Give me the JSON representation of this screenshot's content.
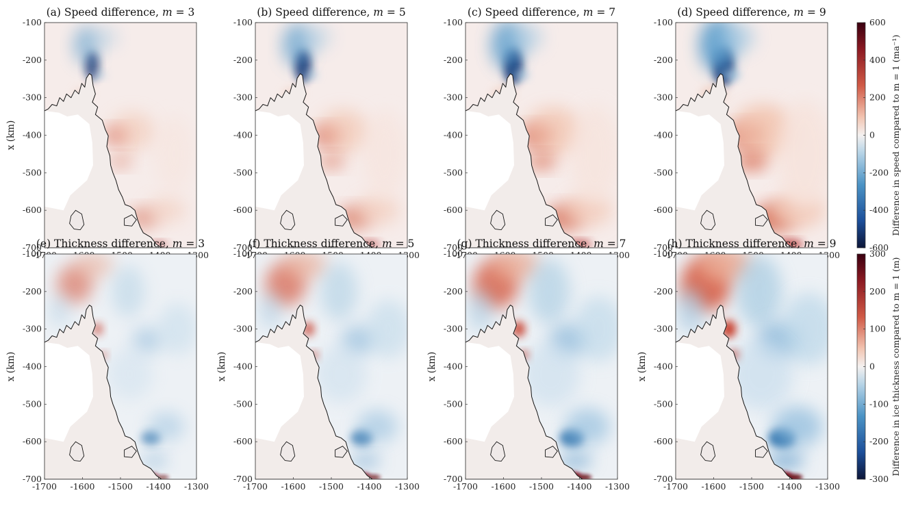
{
  "figure": {
    "panels": [
      {
        "title": "(a) Speed difference, m = 3",
        "title_main": "(a) Speed difference, ",
        "title_var": "m",
        "title_eq": " = 3",
        "field": "speed",
        "m": 3,
        "ylabel": "x (km)"
      },
      {
        "title": "(b) Speed difference, m = 5",
        "title_main": "(b) Speed difference, ",
        "title_var": "m",
        "title_eq": " = 5",
        "field": "speed",
        "m": 5,
        "ylabel": ""
      },
      {
        "title": "(c) Speed difference, m = 7",
        "title_main": "(c) Speed difference, ",
        "title_var": "m",
        "title_eq": " = 7",
        "field": "speed",
        "m": 7,
        "ylabel": ""
      },
      {
        "title": "(d) Speed difference, m = 9",
        "title_main": "(d) Speed difference, ",
        "title_var": "m",
        "title_eq": " = 9",
        "field": "speed",
        "m": 9,
        "ylabel": ""
      },
      {
        "title": "(e) Thickness difference, m = 3",
        "title_main": "(e) Thickness difference, ",
        "title_var": "m",
        "title_eq": " = 3",
        "field": "thickness",
        "m": 3,
        "ylabel": "x (km)"
      },
      {
        "title": "(f) Thickness difference, m = 5",
        "title_main": "(f) Thickness difference, ",
        "title_var": "m",
        "title_eq": " = 5",
        "field": "thickness",
        "m": 5,
        "ylabel": "x (km)"
      },
      {
        "title": "(g) Thickness difference, m = 7",
        "title_main": "(g) Thickness difference, ",
        "title_var": "m",
        "title_eq": " = 7",
        "field": "thickness",
        "m": 7,
        "ylabel": "x (km)"
      },
      {
        "title": "(h) Thickness difference, m = 9",
        "title_main": "(h) Thickness difference, ",
        "title_var": "m",
        "title_eq": " = 9",
        "field": "thickness",
        "m": 9,
        "ylabel": "x (km)"
      }
    ],
    "colorbars": {
      "speed": {
        "label": "Difference in speed compared to m = 1 (ma⁻¹)",
        "ticks": [
          "600",
          "400",
          "200",
          "0",
          "-200",
          "-400",
          "-600"
        ],
        "range": [
          -600,
          600
        ]
      },
      "thickness": {
        "label": "Difference in ice thickness compared to m = 1 (m)",
        "ticks": [
          "300",
          "200",
          "100",
          "0",
          "-100",
          "-200",
          "-300"
        ],
        "range": [
          -300,
          300
        ]
      }
    },
    "colors": {
      "positive": "#67001f",
      "mid_positive": "#d6604d",
      "neutral": "#f7f0ee",
      "mid_negative": "#4393c3",
      "negative": "#053061",
      "land": "#efe9e8",
      "coastline": "#151515"
    }
  },
  "chart_data": {
    "type": "heatmap",
    "x_ticks": [
      -1700,
      -1600,
      -1500,
      -1400,
      -1300
    ],
    "y_ticks": [
      -100,
      -200,
      -300,
      -400,
      -500,
      -600,
      -700
    ],
    "xlim": [
      -1700,
      -1300
    ],
    "ylim": [
      -700,
      -100
    ],
    "panels": [
      "(a)",
      "(b)",
      "(c)",
      "(d)",
      "(e)",
      "(f)",
      "(g)",
      "(h)"
    ],
    "m_values": [
      3,
      5,
      7,
      9
    ],
    "reference_m": 1,
    "features": {
      "speed": [
        {
          "label": "max speed decrease (blue) near the upper ice stream",
          "x_km": -1575,
          "y_km": -215,
          "value": -600
        },
        {
          "label": "speed increase along coast",
          "x_km": -1520,
          "y_km": -400,
          "value": 300
        },
        {
          "label": "speed increase along coast",
          "x_km": -1440,
          "y_km": -620,
          "value": 200
        }
      ],
      "thickness": [
        {
          "label": "thickening (red) upstream plume",
          "x_km": -1620,
          "y_km": -180,
          "value": 120
        },
        {
          "label": "thinning (blue) basin",
          "x_km": -1420,
          "y_km": -590,
          "value": -150
        },
        {
          "label": "strong thickening at southern coast",
          "x_km": -1400,
          "y_km": -690,
          "value": 300
        }
      ]
    }
  }
}
